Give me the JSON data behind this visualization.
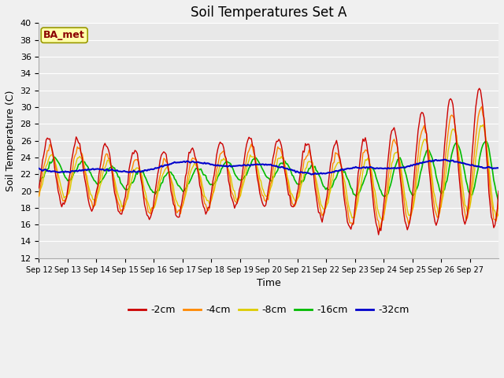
{
  "title": "Soil Temperatures Set A",
  "xlabel": "Time",
  "ylabel": "Soil Temperature (C)",
  "annotation": "BA_met",
  "ylim": [
    12,
    40
  ],
  "yticks": [
    12,
    14,
    16,
    18,
    20,
    22,
    24,
    26,
    28,
    30,
    32,
    34,
    36,
    38,
    40
  ],
  "colors": {
    "-2cm": "#cc0000",
    "-4cm": "#ff8800",
    "-8cm": "#ddcc00",
    "-16cm": "#00bb00",
    "-32cm": "#0000cc"
  },
  "legend_labels": [
    "-2cm",
    "-4cm",
    "-8cm",
    "-16cm",
    "-32cm"
  ],
  "plot_bg": "#e8e8e8",
  "fig_bg": "#f0f0f0",
  "x_tick_labels": [
    "Sep 12",
    "Sep 13",
    "Sep 14",
    "Sep 15",
    "Sep 16",
    "Sep 17",
    "Sep 18",
    "Sep 19",
    "Sep 20",
    "Sep 21",
    "Sep 22",
    "Sep 23",
    "Sep 24",
    "Sep 25",
    "Sep 26",
    "Sep 27"
  ],
  "n_days": 16
}
